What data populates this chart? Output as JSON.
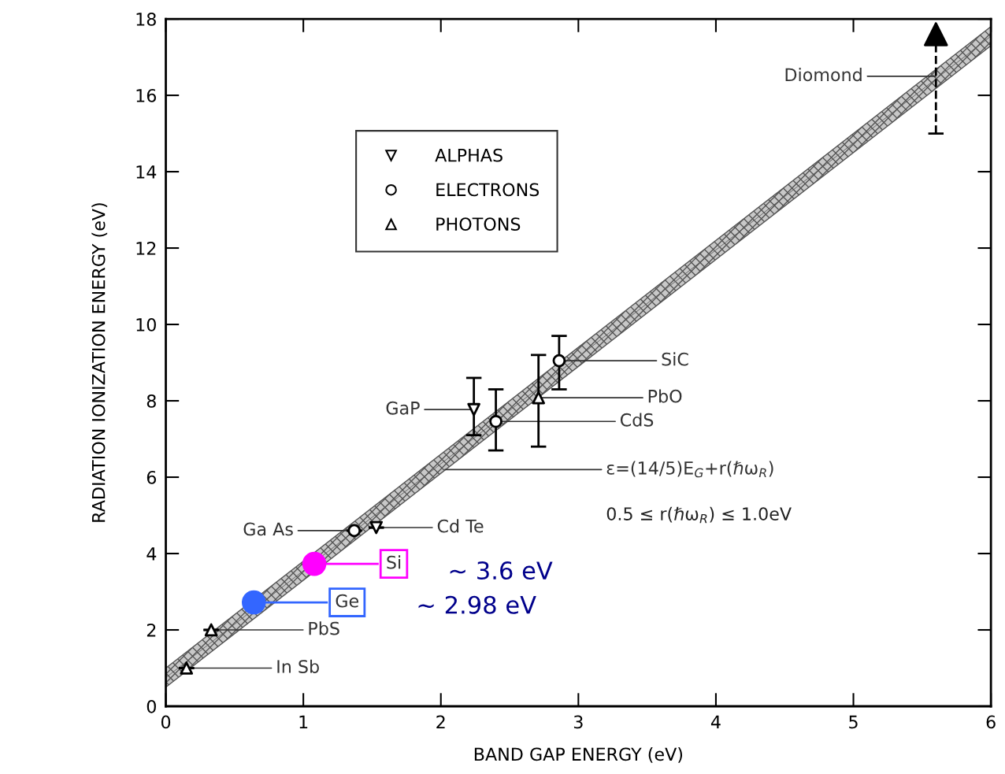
{
  "chart_data": {
    "type": "scatter",
    "xlabel": "BAND GAP ENERGY (eV)",
    "ylabel": "RADIATION IONIZATION ENERGY (eV)",
    "xlim": [
      0,
      6
    ],
    "ylim": [
      0,
      18
    ],
    "xticks": [
      0,
      1,
      2,
      3,
      4,
      5,
      6
    ],
    "yticks": [
      0,
      2,
      4,
      6,
      8,
      10,
      12,
      14,
      16,
      18
    ],
    "grid": false,
    "legend": "top left",
    "series": [
      {
        "type": "line",
        "color": "#555555",
        "x": [
          0,
          3,
          6
        ],
        "values": [
          0.75,
          9.15,
          17.55
        ],
        "lower": [
          0.5,
          8.9,
          17.3
        ],
        "upper": [
          1.0,
          9.4,
          17.8
        ]
      },
      {
        "name": "ALPHAS",
        "color": "#000000",
        "marker": "triangle_down",
        "x": [
          1.53,
          2.24
        ],
        "values": [
          4.68,
          7.77
        ],
        "errors": [
          null,
          [
            7.1,
            8.6
          ]
        ]
      },
      {
        "name": "ELECTRONS",
        "color": "#000000",
        "marker": "circle",
        "x": [
          1.37,
          2.4,
          2.86
        ],
        "values": [
          4.6,
          7.46,
          9.05
        ],
        "errors": [
          null,
          [
            6.7,
            8.3
          ],
          [
            8.3,
            9.7
          ]
        ]
      },
      {
        "name": "PHOTONS",
        "color": "#000000",
        "marker": "triangle",
        "x": [
          0.15,
          0.33,
          2.71
        ],
        "values": [
          1.0,
          2.0,
          8.08
        ],
        "errors": [
          null,
          null,
          [
            6.8,
            9.2
          ]
        ]
      },
      {
        "color": "#000000",
        "marker": "triangle",
        "line_style": "dashed",
        "x": [
          5.6
        ],
        "values": [
          17.6
        ],
        "errors": [
          [
            15.0,
            17.6
          ]
        ]
      },
      {
        "color": "#ff00ff",
        "marker": "circle",
        "x": [
          1.08
        ],
        "values": [
          3.73
        ]
      },
      {
        "color": "#3366ff",
        "marker": "circle",
        "x": [
          0.64
        ],
        "values": [
          2.72
        ]
      }
    ],
    "annotations": [
      {
        "text": "Diomond",
        "x": 5.6,
        "y": 16.5
      },
      {
        "text": "SiC",
        "x": 2.86,
        "y": 9.05
      },
      {
        "text": "PbO",
        "x": 2.71,
        "y": 8.08
      },
      {
        "text": "CdS",
        "x": 2.4,
        "y": 7.46
      },
      {
        "text": "GaP",
        "x": 2.24,
        "y": 7.77
      },
      {
        "text": "Ga As",
        "x": 1.37,
        "y": 4.6
      },
      {
        "text": "Cd Te",
        "x": 1.53,
        "y": 4.68
      },
      {
        "text": "PbS",
        "x": 0.33,
        "y": 2.0
      },
      {
        "text": "In Sb",
        "x": 0.15,
        "y": 1.0
      },
      {
        "text": "ε=(14/5)E$_{G}$+r(ℏω$_{R}$)",
        "x": 2.03,
        "y": 6.2
      },
      "0.5 ≤ r(ℏω$_{R}$) ≤ 1.0eV",
      "Si",
      "Ge",
      "~ 3.6 eV",
      "~ 2.98 eV"
    ]
  }
}
